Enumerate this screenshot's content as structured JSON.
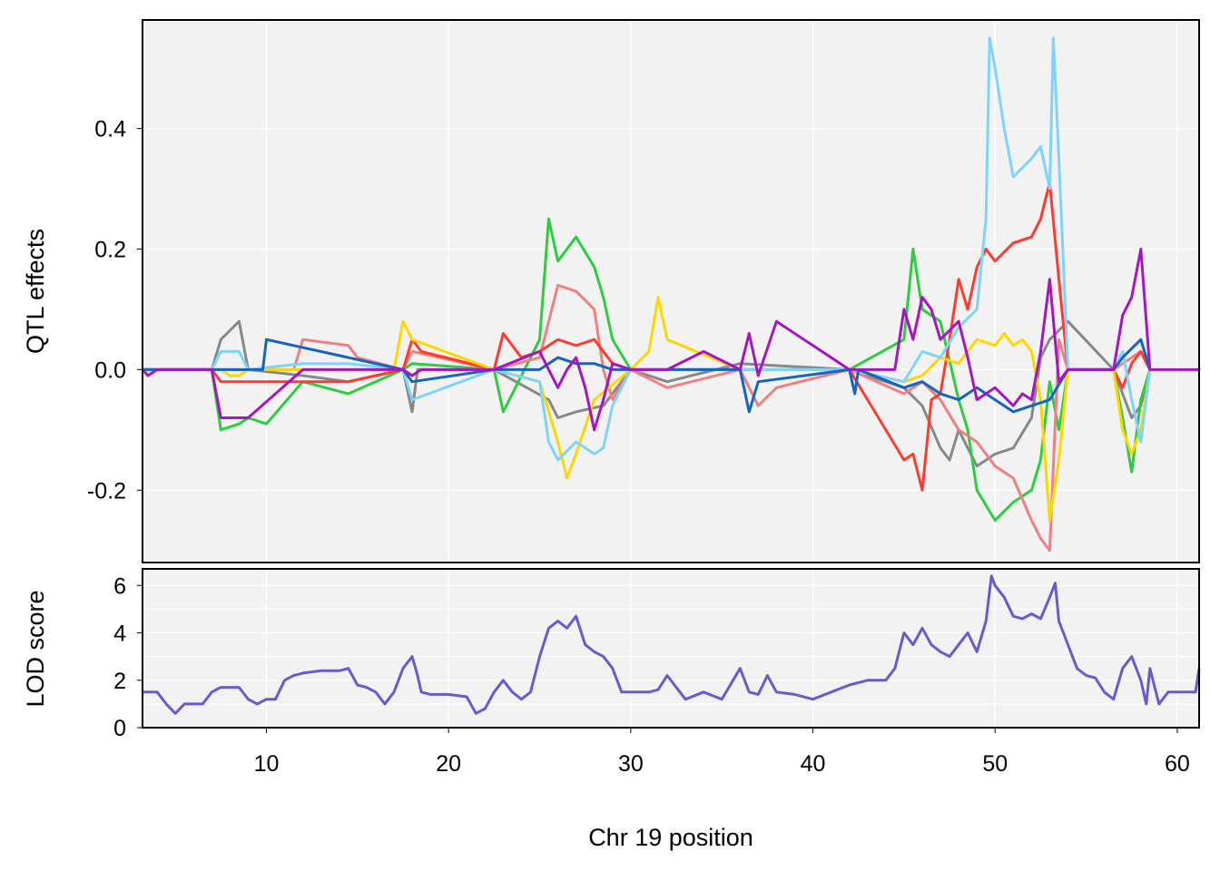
{
  "chart_data": [
    {
      "type": "line",
      "ylabel": "QTL effects",
      "xlim": [
        3.2,
        61.2
      ],
      "ylim": [
        -0.32,
        0.58
      ],
      "y_ticks": [
        -0.2,
        0.0,
        0.2,
        0.4
      ],
      "y_tick_labels": [
        "-0.2",
        "0.0",
        "0.2",
        "0.4"
      ],
      "x_ticks": [
        10,
        20,
        30,
        40,
        50,
        60
      ],
      "grid": true,
      "series": [
        {
          "color": "#888888",
          "x": [
            3.2,
            7.0,
            7.5,
            8.5,
            9.0,
            12.0,
            14.5,
            17.5,
            18.0,
            18.3,
            22.5,
            25.5,
            26.0,
            27.0,
            28.5,
            30.0,
            32.0,
            36.0,
            42.0,
            45.0,
            46.0,
            47.0,
            47.5,
            48.0,
            48.5,
            49.0,
            50.0,
            51.0,
            52.0,
            52.5,
            53.0,
            54.0,
            56.5,
            57.5,
            58.0,
            58.5
          ],
          "y": [
            0,
            0,
            0.05,
            0.08,
            0,
            -0.01,
            -0.02,
            0,
            -0.07,
            0,
            0,
            -0.05,
            -0.08,
            -0.07,
            -0.06,
            0,
            -0.02,
            0.01,
            0,
            -0.03,
            -0.06,
            -0.13,
            -0.15,
            -0.1,
            -0.13,
            -0.16,
            -0.14,
            -0.13,
            -0.08,
            0.02,
            0.05,
            0.08,
            0,
            -0.08,
            -0.06,
            0
          ]
        },
        {
          "color": "#2ecc40",
          "x": [
            3.2,
            7.0,
            7.5,
            8.5,
            9.0,
            10.0,
            12.0,
            14.5,
            17.5,
            18.0,
            22.5,
            23.0,
            25.0,
            25.5,
            26.0,
            27.0,
            28.0,
            28.5,
            29.0,
            30.0,
            36.0,
            42.0,
            45.0,
            45.5,
            46.0,
            47.0,
            48.0,
            48.5,
            49.0,
            50.0,
            51.0,
            52.0,
            52.5,
            53.0,
            53.5,
            54.0,
            56.5,
            57.0,
            57.5,
            58.0,
            58.5
          ],
          "y": [
            0,
            0,
            -0.1,
            -0.09,
            -0.08,
            -0.09,
            -0.02,
            -0.04,
            0,
            0.01,
            0,
            -0.07,
            0.05,
            0.25,
            0.18,
            0.22,
            0.17,
            0.12,
            0.05,
            0,
            0,
            0,
            0.05,
            0.2,
            0.1,
            0.08,
            -0.05,
            -0.1,
            -0.2,
            -0.25,
            -0.22,
            -0.2,
            -0.15,
            -0.02,
            -0.1,
            0,
            0,
            -0.08,
            -0.17,
            -0.05,
            0
          ]
        },
        {
          "color": "#f08080",
          "x": [
            3.2,
            11.5,
            12.0,
            14.5,
            15.0,
            17.5,
            18.0,
            22.5,
            25.0,
            25.5,
            26.0,
            27.0,
            28.0,
            28.5,
            29.0,
            30.0,
            32.0,
            36.0,
            37.0,
            38.0,
            42.0,
            45.0,
            46.0,
            47.0,
            48.0,
            49.0,
            50.0,
            51.0,
            52.0,
            52.5,
            53.0,
            53.5,
            54.0,
            56.5,
            58.0,
            58.5
          ],
          "y": [
            0,
            0,
            0.05,
            0.04,
            0.02,
            0,
            0.03,
            0,
            0.02,
            0.08,
            0.14,
            0.13,
            0.1,
            0,
            -0.05,
            0,
            -0.03,
            0,
            -0.06,
            -0.03,
            0,
            -0.04,
            -0.02,
            -0.05,
            -0.1,
            -0.12,
            -0.16,
            -0.18,
            -0.25,
            -0.28,
            -0.3,
            0.05,
            0,
            0,
            0.03,
            0
          ]
        },
        {
          "color": "#ff3b30",
          "x": [
            3.2,
            7.0,
            7.5,
            9.0,
            12.0,
            14.5,
            17.5,
            18.0,
            18.5,
            22.5,
            23.0,
            24.0,
            25.0,
            26.0,
            27.0,
            28.0,
            28.5,
            29.0,
            30.0,
            32.0,
            36.0,
            42.0,
            45.0,
            45.5,
            46.0,
            46.5,
            47.0,
            47.5,
            48.0,
            48.5,
            49.0,
            49.5,
            50.0,
            51.0,
            52.0,
            52.5,
            53.0,
            53.5,
            54.0,
            56.5,
            57.0,
            57.5,
            58.0,
            58.5
          ],
          "y": [
            0,
            0,
            -0.02,
            -0.02,
            -0.02,
            -0.02,
            0,
            0.05,
            0.03,
            0,
            0.06,
            0.02,
            0.03,
            0.05,
            0.04,
            0.05,
            0.03,
            0.01,
            0,
            0,
            0,
            0,
            -0.15,
            -0.14,
            -0.2,
            -0.05,
            -0.04,
            0.05,
            0.15,
            0.1,
            0.17,
            0.2,
            0.18,
            0.21,
            0.22,
            0.25,
            0.31,
            0.15,
            0,
            0,
            -0.03,
            0.01,
            0.03,
            0
          ]
        },
        {
          "color": "#ffd700",
          "x": [
            3.2,
            7.5,
            8.0,
            8.5,
            9.0,
            17.0,
            17.5,
            18.0,
            22.5,
            25.0,
            26.0,
            26.5,
            27.0,
            28.0,
            30.0,
            31.0,
            31.5,
            32.0,
            36.0,
            42.0,
            45.0,
            46.0,
            47.0,
            48.0,
            49.0,
            50.0,
            50.5,
            51.0,
            51.5,
            52.0,
            52.5,
            53.0,
            53.5,
            54.0,
            56.5,
            57.0,
            57.5,
            58.0,
            58.5
          ],
          "y": [
            0,
            0,
            -0.01,
            -0.01,
            0,
            0,
            0.08,
            0.05,
            0,
            -0.02,
            -0.12,
            -0.18,
            -0.14,
            -0.05,
            0,
            0.03,
            0.12,
            0.05,
            0,
            0,
            -0.02,
            -0.01,
            0.02,
            0.01,
            0.05,
            0.04,
            0.06,
            0.04,
            0.05,
            0.03,
            -0.05,
            -0.25,
            -0.15,
            0,
            0,
            -0.1,
            -0.14,
            -0.1,
            0
          ]
        },
        {
          "color": "#7fd4ff",
          "x": [
            3.2,
            7.0,
            7.5,
            8.5,
            9.0,
            12.0,
            14.5,
            17.5,
            18.0,
            22.5,
            25.0,
            25.5,
            26.0,
            27.0,
            28.0,
            28.5,
            29.0,
            30.0,
            32.0,
            36.0,
            42.0,
            45.0,
            46.0,
            47.0,
            48.0,
            49.0,
            49.5,
            49.7,
            50.0,
            50.5,
            51.0,
            52.0,
            52.5,
            53.0,
            53.2,
            53.5,
            54.0,
            56.5,
            57.0,
            57.5,
            58.0,
            58.5
          ],
          "y": [
            0,
            0,
            0.03,
            0.03,
            0,
            0.01,
            0.01,
            0,
            -0.05,
            0,
            -0.02,
            -0.12,
            -0.15,
            -0.12,
            -0.14,
            -0.13,
            -0.06,
            0,
            0,
            0,
            0,
            -0.02,
            0.03,
            0.02,
            0.07,
            0.1,
            0.25,
            0.55,
            0.5,
            0.4,
            0.32,
            0.35,
            0.37,
            0.3,
            0.55,
            0.35,
            0,
            0,
            0.03,
            -0.05,
            -0.12,
            0
          ]
        },
        {
          "color": "#1565c0",
          "x": [
            3.2,
            9.8,
            10.0,
            17.5,
            18.0,
            22.5,
            25.0,
            26.0,
            27.0,
            28.0,
            29.0,
            30.0,
            36.0,
            36.5,
            37.0,
            42.0,
            42.3,
            42.5,
            45.0,
            46.0,
            47.0,
            48.0,
            49.0,
            50.0,
            51.0,
            52.0,
            53.0,
            54.0,
            56.5,
            57.0,
            58.0,
            58.5
          ],
          "y": [
            0,
            0,
            0.05,
            0,
            -0.02,
            0,
            0,
            0.02,
            0.01,
            0.01,
            0,
            0,
            0,
            -0.07,
            -0.02,
            0,
            -0.04,
            0,
            -0.03,
            -0.02,
            -0.04,
            -0.05,
            -0.03,
            -0.05,
            -0.07,
            -0.06,
            -0.05,
            0,
            0,
            0.02,
            0.05,
            0
          ]
        },
        {
          "color": "#a515c0",
          "x": [
            3.2,
            3.5,
            4.0,
            4.5,
            7.0,
            7.5,
            8.0,
            9.0,
            12.0,
            14.5,
            17.5,
            18.0,
            18.5,
            22.5,
            25.0,
            25.5,
            26.0,
            26.5,
            27.0,
            27.5,
            28.0,
            28.5,
            29.0,
            30.0,
            31.0,
            32.0,
            34.0,
            36.0,
            36.5,
            37.0,
            38.0,
            42.0,
            44.5,
            45.0,
            45.5,
            46.0,
            46.5,
            47.0,
            48.0,
            48.5,
            49.0,
            50.0,
            51.0,
            51.5,
            52.0,
            52.5,
            53.0,
            53.5,
            54.0,
            56.5,
            57.0,
            57.5,
            58.0,
            58.5,
            61.2
          ],
          "y": [
            0,
            -0.01,
            0,
            0,
            0,
            -0.08,
            -0.08,
            -0.08,
            0,
            0,
            0,
            -0.01,
            0,
            0,
            0.03,
            0,
            -0.03,
            0,
            0.02,
            -0.03,
            -0.1,
            -0.05,
            0.01,
            0,
            0,
            0,
            0.03,
            0,
            0.06,
            -0.01,
            0.08,
            0,
            0,
            0.1,
            0.05,
            0.12,
            0.1,
            0.05,
            0.08,
            0.02,
            -0.05,
            -0.03,
            -0.06,
            -0.04,
            -0.05,
            0.03,
            0.15,
            -0.02,
            0,
            0,
            0.09,
            0.12,
            0.2,
            0,
            0
          ]
        }
      ]
    },
    {
      "type": "line",
      "ylabel": "LOD score",
      "xlabel": "Chr 19 position",
      "xlim": [
        3.2,
        61.2
      ],
      "ylim": [
        0,
        6.7
      ],
      "y_ticks": [
        0,
        2,
        4,
        6
      ],
      "y_tick_labels": [
        "0",
        "2",
        "4",
        "6"
      ],
      "x_ticks": [
        10,
        20,
        30,
        40,
        50,
        60
      ],
      "x_tick_labels": [
        "10",
        "20",
        "30",
        "40",
        "50",
        "60"
      ],
      "grid": true,
      "series": [
        {
          "color": "#6a5acd",
          "x": [
            3.2,
            4.0,
            4.5,
            5.0,
            5.5,
            6.0,
            6.5,
            7.0,
            7.5,
            8.0,
            8.5,
            9.0,
            9.5,
            10.0,
            10.5,
            11.0,
            11.5,
            12.0,
            13.0,
            14.0,
            14.5,
            15.0,
            15.5,
            16.0,
            16.5,
            17.0,
            17.5,
            18.0,
            18.3,
            18.5,
            19.0,
            20.0,
            21.0,
            21.5,
            22.0,
            22.5,
            23.0,
            23.5,
            24.0,
            24.5,
            25.0,
            25.5,
            26.0,
            26.5,
            27.0,
            27.5,
            28.0,
            28.5,
            29.0,
            29.5,
            30.0,
            31.0,
            31.5,
            32.0,
            33.0,
            34.0,
            35.0,
            36.0,
            36.5,
            37.0,
            37.5,
            38.0,
            39.0,
            40.0,
            41.0,
            42.0,
            43.0,
            44.0,
            44.5,
            45.0,
            45.5,
            46.0,
            46.5,
            47.0,
            47.5,
            48.0,
            48.5,
            49.0,
            49.5,
            49.8,
            50.0,
            50.5,
            51.0,
            51.5,
            52.0,
            52.5,
            53.0,
            53.3,
            53.5,
            54.0,
            54.5,
            55.0,
            55.5,
            56.0,
            56.5,
            57.0,
            57.5,
            58.0,
            58.3,
            58.5,
            59.0,
            59.5,
            60.0,
            60.5,
            61.0,
            61.2
          ],
          "y": [
            1.5,
            1.5,
            1.0,
            0.6,
            1.0,
            1.0,
            1.0,
            1.5,
            1.7,
            1.7,
            1.7,
            1.2,
            1.0,
            1.2,
            1.2,
            2.0,
            2.2,
            2.3,
            2.4,
            2.4,
            2.5,
            1.8,
            1.7,
            1.5,
            1.0,
            1.5,
            2.5,
            3.0,
            2.2,
            1.5,
            1.4,
            1.4,
            1.3,
            0.6,
            0.8,
            1.5,
            2.0,
            1.5,
            1.2,
            1.5,
            3.0,
            4.2,
            4.5,
            4.2,
            4.7,
            3.5,
            3.2,
            3.0,
            2.5,
            1.5,
            1.5,
            1.5,
            1.6,
            2.2,
            1.2,
            1.5,
            1.2,
            2.5,
            1.5,
            1.4,
            2.2,
            1.5,
            1.4,
            1.2,
            1.5,
            1.8,
            2.0,
            2.0,
            2.5,
            4.0,
            3.5,
            4.2,
            3.5,
            3.2,
            3.0,
            3.5,
            4.0,
            3.2,
            4.5,
            6.4,
            6.0,
            5.5,
            4.7,
            4.6,
            4.8,
            4.6,
            5.5,
            6.1,
            4.5,
            3.5,
            2.5,
            2.2,
            2.1,
            1.5,
            1.2,
            2.5,
            3.0,
            2.0,
            1.0,
            2.5,
            1.0,
            1.5,
            1.5,
            1.5,
            1.5,
            2.5
          ]
        }
      ]
    }
  ]
}
